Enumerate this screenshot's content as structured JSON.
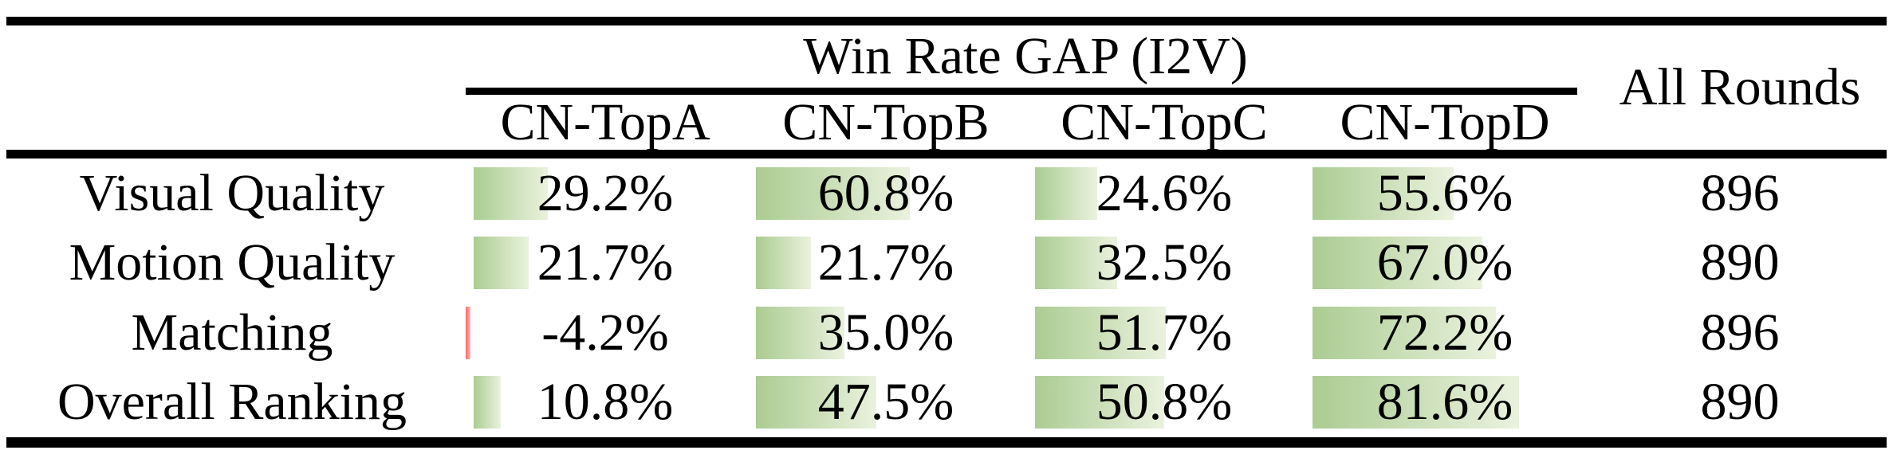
{
  "table": {
    "title": "Win Rate GAP (I2V)",
    "all_rounds_label": "All Rounds",
    "columns": [
      "CN-TopA",
      "CN-TopB",
      "CN-TopC",
      "CN-TopD"
    ],
    "rows": [
      {
        "label": "Visual Quality",
        "values": [
          "29.2%",
          "60.8%",
          "24.6%",
          "55.6%"
        ],
        "all_rounds": "896"
      },
      {
        "label": "Motion Quality",
        "values": [
          "21.7%",
          "21.7%",
          "32.5%",
          "67.0%"
        ],
        "all_rounds": "890"
      },
      {
        "label": "Matching",
        "values": [
          "-4.2%",
          "35.0%",
          "51.7%",
          "72.2%"
        ],
        "all_rounds": "896"
      },
      {
        "label": "Overall Ranking",
        "values": [
          "10.8%",
          "47.5%",
          "50.8%",
          "81.6%"
        ],
        "all_rounds": "890"
      }
    ],
    "colors": {
      "bar_green_start": "#abcc92",
      "bar_green_end": "#eaf2de",
      "bar_red_start": "#ff6a6a",
      "bar_red_end": "#ffb3b3",
      "rule": "#000000",
      "text": "#000000",
      "background": "#ffffff"
    }
  },
  "chart_data": {
    "type": "table",
    "title": "Win Rate GAP (I2V)",
    "columns": [
      "CN-TopA",
      "CN-TopB",
      "CN-TopC",
      "CN-TopD",
      "All Rounds"
    ],
    "row_labels": [
      "Visual Quality",
      "Motion Quality",
      "Matching",
      "Overall Ranking"
    ],
    "series": [
      {
        "name": "Visual Quality",
        "values": [
          29.2,
          60.8,
          24.6,
          55.6
        ],
        "all_rounds": 896
      },
      {
        "name": "Motion Quality",
        "values": [
          21.7,
          21.7,
          32.5,
          67.0
        ],
        "all_rounds": 890
      },
      {
        "name": "Matching",
        "values": [
          -4.2,
          35.0,
          51.7,
          72.2
        ],
        "all_rounds": 896
      },
      {
        "name": "Overall Ranking",
        "values": [
          10.8,
          47.5,
          50.8,
          81.6
        ],
        "all_rounds": 890
      }
    ],
    "value_unit": "percent",
    "notes": "Green data bars proportional to win-rate gap; negative value shown as thin red bar"
  }
}
